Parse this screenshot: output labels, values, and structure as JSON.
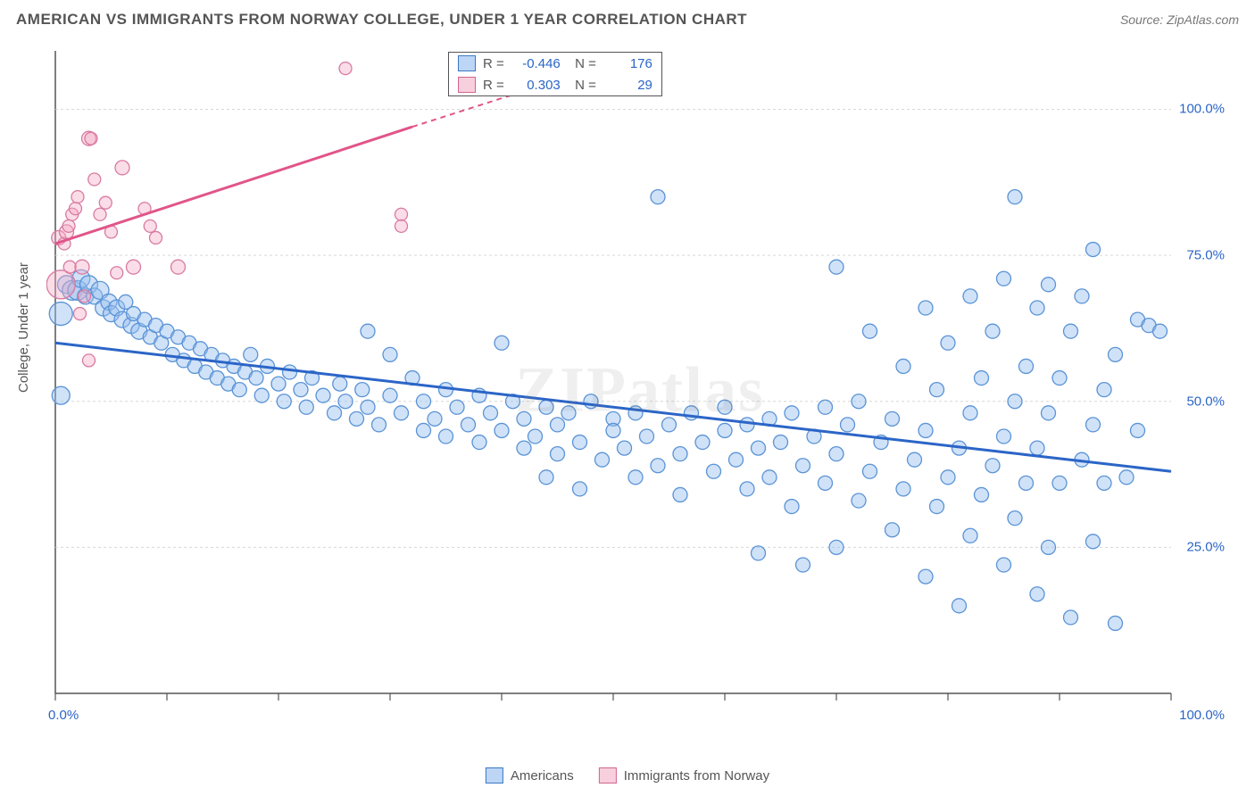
{
  "header": {
    "title": "AMERICAN VS IMMIGRANTS FROM NORWAY COLLEGE, UNDER 1 YEAR CORRELATION CHART",
    "source": "Source: ZipAtlas.com"
  },
  "watermark": "ZIPatlas",
  "chart": {
    "type": "scatter",
    "ylabel": "College, Under 1 year",
    "xlim": [
      0,
      100
    ],
    "ylim": [
      0,
      110
    ],
    "background_color": "#ffffff",
    "grid_color": "#d8d8d8",
    "axis_color": "#555555",
    "yticks": [
      25,
      50,
      75,
      100
    ],
    "ytick_labels": [
      "25.0%",
      "50.0%",
      "75.0%",
      "100.0%"
    ],
    "xtick_positions": [
      0,
      10,
      20,
      30,
      40,
      50,
      60,
      70,
      80,
      90,
      100
    ],
    "xtick_labels": {
      "0": "0.0%",
      "100": "100.0%"
    },
    "stats_legend": [
      {
        "swatch": "blue",
        "r_label": "R =",
        "r": "-0.446",
        "n_label": "N =",
        "n": "176"
      },
      {
        "swatch": "pink",
        "r_label": "R =",
        "r": "0.303",
        "n_label": "N =",
        "n": "29"
      }
    ],
    "series_legend": [
      {
        "swatch": "blue",
        "label": "Americans"
      },
      {
        "swatch": "pink",
        "label": "Immigrants from Norway"
      }
    ],
    "trend_lines": {
      "blue": {
        "x1": 0,
        "y1": 60,
        "x2": 100,
        "y2": 38,
        "color": "#2b65c7",
        "width": 3
      },
      "pink_solid": {
        "x1": 0,
        "y1": 77,
        "x2": 32,
        "y2": 97,
        "color": "#e15589",
        "width": 3
      },
      "pink_dash": {
        "x1": 32,
        "y1": 97,
        "x2": 50,
        "y2": 108,
        "color": "#e15589",
        "width": 2,
        "dash": "6,5"
      }
    },
    "marker_style": {
      "blue": {
        "fill": "rgba(150,190,240,0.45)",
        "stroke": "#5a93d6",
        "stroke_width": 1.3
      },
      "pink": {
        "fill": "rgba(245,170,195,0.40)",
        "stroke": "#d97aa2",
        "stroke_width": 1.3
      }
    },
    "series_pink": [
      {
        "x": 0.5,
        "y": 70,
        "r": 16
      },
      {
        "x": 0.3,
        "y": 78,
        "r": 8
      },
      {
        "x": 0.8,
        "y": 77,
        "r": 7
      },
      {
        "x": 1.0,
        "y": 79,
        "r": 8
      },
      {
        "x": 1.2,
        "y": 80,
        "r": 7
      },
      {
        "x": 1.3,
        "y": 73,
        "r": 7
      },
      {
        "x": 1.5,
        "y": 82,
        "r": 7
      },
      {
        "x": 1.8,
        "y": 83,
        "r": 7
      },
      {
        "x": 2.0,
        "y": 85,
        "r": 7
      },
      {
        "x": 2.2,
        "y": 65,
        "r": 7
      },
      {
        "x": 2.4,
        "y": 73,
        "r": 8
      },
      {
        "x": 2.6,
        "y": 68,
        "r": 7
      },
      {
        "x": 3.0,
        "y": 95,
        "r": 8
      },
      {
        "x": 3.2,
        "y": 95,
        "r": 7
      },
      {
        "x": 3.0,
        "y": 57,
        "r": 7
      },
      {
        "x": 3.5,
        "y": 88,
        "r": 7
      },
      {
        "x": 4.0,
        "y": 82,
        "r": 7
      },
      {
        "x": 4.5,
        "y": 84,
        "r": 7
      },
      {
        "x": 5.0,
        "y": 79,
        "r": 7
      },
      {
        "x": 5.5,
        "y": 72,
        "r": 7
      },
      {
        "x": 6.0,
        "y": 90,
        "r": 8
      },
      {
        "x": 7.0,
        "y": 73,
        "r": 8
      },
      {
        "x": 8.0,
        "y": 83,
        "r": 7
      },
      {
        "x": 8.5,
        "y": 80,
        "r": 7
      },
      {
        "x": 9.0,
        "y": 78,
        "r": 7
      },
      {
        "x": 11,
        "y": 73,
        "r": 8
      },
      {
        "x": 26,
        "y": 107,
        "r": 7
      },
      {
        "x": 31,
        "y": 82,
        "r": 7
      },
      {
        "x": 31,
        "y": 80,
        "r": 7
      }
    ],
    "series_blue": [
      {
        "x": 0.5,
        "y": 65,
        "r": 13
      },
      {
        "x": 0.5,
        "y": 51,
        "r": 10
      },
      {
        "x": 1,
        "y": 70,
        "r": 10
      },
      {
        "x": 1.5,
        "y": 69,
        "r": 11
      },
      {
        "x": 2,
        "y": 69,
        "r": 11
      },
      {
        "x": 2.3,
        "y": 71,
        "r": 10
      },
      {
        "x": 2.7,
        "y": 68,
        "r": 9
      },
      {
        "x": 3,
        "y": 70,
        "r": 10
      },
      {
        "x": 3.5,
        "y": 68,
        "r": 9
      },
      {
        "x": 4,
        "y": 69,
        "r": 10
      },
      {
        "x": 4.3,
        "y": 66,
        "r": 9
      },
      {
        "x": 4.8,
        "y": 67,
        "r": 9
      },
      {
        "x": 5,
        "y": 65,
        "r": 9
      },
      {
        "x": 5.5,
        "y": 66,
        "r": 9
      },
      {
        "x": 6,
        "y": 64,
        "r": 9
      },
      {
        "x": 6.3,
        "y": 67,
        "r": 8
      },
      {
        "x": 6.8,
        "y": 63,
        "r": 9
      },
      {
        "x": 7,
        "y": 65,
        "r": 8
      },
      {
        "x": 7.5,
        "y": 62,
        "r": 9
      },
      {
        "x": 8,
        "y": 64,
        "r": 8
      },
      {
        "x": 8.5,
        "y": 61,
        "r": 8
      },
      {
        "x": 9,
        "y": 63,
        "r": 8
      },
      {
        "x": 9.5,
        "y": 60,
        "r": 8
      },
      {
        "x": 10,
        "y": 62,
        "r": 8
      },
      {
        "x": 10.5,
        "y": 58,
        "r": 8
      },
      {
        "x": 11,
        "y": 61,
        "r": 8
      },
      {
        "x": 11.5,
        "y": 57,
        "r": 8
      },
      {
        "x": 12,
        "y": 60,
        "r": 8
      },
      {
        "x": 12.5,
        "y": 56,
        "r": 8
      },
      {
        "x": 13,
        "y": 59,
        "r": 8
      },
      {
        "x": 13.5,
        "y": 55,
        "r": 8
      },
      {
        "x": 14,
        "y": 58,
        "r": 8
      },
      {
        "x": 14.5,
        "y": 54,
        "r": 8
      },
      {
        "x": 15,
        "y": 57,
        "r": 8
      },
      {
        "x": 15.5,
        "y": 53,
        "r": 8
      },
      {
        "x": 16,
        "y": 56,
        "r": 8
      },
      {
        "x": 16.5,
        "y": 52,
        "r": 8
      },
      {
        "x": 17,
        "y": 55,
        "r": 8
      },
      {
        "x": 17.5,
        "y": 58,
        "r": 8
      },
      {
        "x": 18,
        "y": 54,
        "r": 8
      },
      {
        "x": 18.5,
        "y": 51,
        "r": 8
      },
      {
        "x": 19,
        "y": 56,
        "r": 8
      },
      {
        "x": 20,
        "y": 53,
        "r": 8
      },
      {
        "x": 20.5,
        "y": 50,
        "r": 8
      },
      {
        "x": 21,
        "y": 55,
        "r": 8
      },
      {
        "x": 22,
        "y": 52,
        "r": 8
      },
      {
        "x": 22.5,
        "y": 49,
        "r": 8
      },
      {
        "x": 23,
        "y": 54,
        "r": 8
      },
      {
        "x": 24,
        "y": 51,
        "r": 8
      },
      {
        "x": 25,
        "y": 48,
        "r": 8
      },
      {
        "x": 25.5,
        "y": 53,
        "r": 8
      },
      {
        "x": 26,
        "y": 50,
        "r": 8
      },
      {
        "x": 27,
        "y": 47,
        "r": 8
      },
      {
        "x": 27.5,
        "y": 52,
        "r": 8
      },
      {
        "x": 28,
        "y": 62,
        "r": 8
      },
      {
        "x": 28,
        "y": 49,
        "r": 8
      },
      {
        "x": 29,
        "y": 46,
        "r": 8
      },
      {
        "x": 30,
        "y": 51,
        "r": 8
      },
      {
        "x": 30,
        "y": 58,
        "r": 8
      },
      {
        "x": 31,
        "y": 48,
        "r": 8
      },
      {
        "x": 32,
        "y": 54,
        "r": 8
      },
      {
        "x": 33,
        "y": 45,
        "r": 8
      },
      {
        "x": 33,
        "y": 50,
        "r": 8
      },
      {
        "x": 34,
        "y": 47,
        "r": 8
      },
      {
        "x": 35,
        "y": 52,
        "r": 8
      },
      {
        "x": 35,
        "y": 44,
        "r": 8
      },
      {
        "x": 36,
        "y": 49,
        "r": 8
      },
      {
        "x": 37,
        "y": 46,
        "r": 8
      },
      {
        "x": 38,
        "y": 51,
        "r": 8
      },
      {
        "x": 38,
        "y": 43,
        "r": 8
      },
      {
        "x": 39,
        "y": 48,
        "r": 8
      },
      {
        "x": 40,
        "y": 60,
        "r": 8
      },
      {
        "x": 40,
        "y": 45,
        "r": 8
      },
      {
        "x": 41,
        "y": 50,
        "r": 8
      },
      {
        "x": 42,
        "y": 42,
        "r": 8
      },
      {
        "x": 42,
        "y": 47,
        "r": 8
      },
      {
        "x": 43,
        "y": 44,
        "r": 8
      },
      {
        "x": 44,
        "y": 49,
        "r": 8
      },
      {
        "x": 44,
        "y": 37,
        "r": 8
      },
      {
        "x": 45,
        "y": 46,
        "r": 8
      },
      {
        "x": 45,
        "y": 41,
        "r": 8
      },
      {
        "x": 46,
        "y": 48,
        "r": 8
      },
      {
        "x": 47,
        "y": 43,
        "r": 8
      },
      {
        "x": 47,
        "y": 35,
        "r": 8
      },
      {
        "x": 48,
        "y": 50,
        "r": 8
      },
      {
        "x": 49,
        "y": 40,
        "r": 8
      },
      {
        "x": 50,
        "y": 47,
        "r": 8
      },
      {
        "x": 50,
        "y": 45,
        "r": 8
      },
      {
        "x": 51,
        "y": 42,
        "r": 8
      },
      {
        "x": 52,
        "y": 48,
        "r": 8
      },
      {
        "x": 52,
        "y": 37,
        "r": 8
      },
      {
        "x": 53,
        "y": 44,
        "r": 8
      },
      {
        "x": 54,
        "y": 85,
        "r": 8
      },
      {
        "x": 54,
        "y": 39,
        "r": 8
      },
      {
        "x": 55,
        "y": 46,
        "r": 8
      },
      {
        "x": 56,
        "y": 41,
        "r": 8
      },
      {
        "x": 56,
        "y": 34,
        "r": 8
      },
      {
        "x": 57,
        "y": 48,
        "r": 8
      },
      {
        "x": 58,
        "y": 43,
        "r": 8
      },
      {
        "x": 59,
        "y": 38,
        "r": 8
      },
      {
        "x": 60,
        "y": 45,
        "r": 8
      },
      {
        "x": 60,
        "y": 49,
        "r": 8
      },
      {
        "x": 61,
        "y": 40,
        "r": 8
      },
      {
        "x": 62,
        "y": 46,
        "r": 8
      },
      {
        "x": 62,
        "y": 35,
        "r": 8
      },
      {
        "x": 63,
        "y": 24,
        "r": 8
      },
      {
        "x": 63,
        "y": 42,
        "r": 8
      },
      {
        "x": 64,
        "y": 47,
        "r": 8
      },
      {
        "x": 64,
        "y": 37,
        "r": 8
      },
      {
        "x": 65,
        "y": 43,
        "r": 8
      },
      {
        "x": 66,
        "y": 48,
        "r": 8
      },
      {
        "x": 66,
        "y": 32,
        "r": 8
      },
      {
        "x": 67,
        "y": 39,
        "r": 8
      },
      {
        "x": 67,
        "y": 22,
        "r": 8
      },
      {
        "x": 68,
        "y": 44,
        "r": 8
      },
      {
        "x": 69,
        "y": 49,
        "r": 8
      },
      {
        "x": 69,
        "y": 36,
        "r": 8
      },
      {
        "x": 70,
        "y": 73,
        "r": 8
      },
      {
        "x": 70,
        "y": 41,
        "r": 8
      },
      {
        "x": 70,
        "y": 25,
        "r": 8
      },
      {
        "x": 71,
        "y": 46,
        "r": 8
      },
      {
        "x": 72,
        "y": 33,
        "r": 8
      },
      {
        "x": 72,
        "y": 50,
        "r": 8
      },
      {
        "x": 73,
        "y": 38,
        "r": 8
      },
      {
        "x": 73,
        "y": 62,
        "r": 8
      },
      {
        "x": 74,
        "y": 43,
        "r": 8
      },
      {
        "x": 75,
        "y": 28,
        "r": 8
      },
      {
        "x": 75,
        "y": 47,
        "r": 8
      },
      {
        "x": 76,
        "y": 35,
        "r": 8
      },
      {
        "x": 76,
        "y": 56,
        "r": 8
      },
      {
        "x": 77,
        "y": 40,
        "r": 8
      },
      {
        "x": 78,
        "y": 66,
        "r": 8
      },
      {
        "x": 78,
        "y": 20,
        "r": 8
      },
      {
        "x": 78,
        "y": 45,
        "r": 8
      },
      {
        "x": 79,
        "y": 32,
        "r": 8
      },
      {
        "x": 79,
        "y": 52,
        "r": 8
      },
      {
        "x": 80,
        "y": 37,
        "r": 8
      },
      {
        "x": 80,
        "y": 60,
        "r": 8
      },
      {
        "x": 81,
        "y": 42,
        "r": 8
      },
      {
        "x": 81,
        "y": 15,
        "r": 8
      },
      {
        "x": 82,
        "y": 68,
        "r": 8
      },
      {
        "x": 82,
        "y": 48,
        "r": 8
      },
      {
        "x": 82,
        "y": 27,
        "r": 8
      },
      {
        "x": 83,
        "y": 34,
        "r": 8
      },
      {
        "x": 83,
        "y": 54,
        "r": 8
      },
      {
        "x": 84,
        "y": 39,
        "r": 8
      },
      {
        "x": 84,
        "y": 62,
        "r": 8
      },
      {
        "x": 85,
        "y": 44,
        "r": 8
      },
      {
        "x": 85,
        "y": 71,
        "r": 8
      },
      {
        "x": 85,
        "y": 22,
        "r": 8
      },
      {
        "x": 86,
        "y": 50,
        "r": 8
      },
      {
        "x": 86,
        "y": 85,
        "r": 8
      },
      {
        "x": 86,
        "y": 30,
        "r": 8
      },
      {
        "x": 87,
        "y": 56,
        "r": 8
      },
      {
        "x": 87,
        "y": 36,
        "r": 8
      },
      {
        "x": 88,
        "y": 66,
        "r": 8
      },
      {
        "x": 88,
        "y": 17,
        "r": 8
      },
      {
        "x": 88,
        "y": 42,
        "r": 8
      },
      {
        "x": 89,
        "y": 70,
        "r": 8
      },
      {
        "x": 89,
        "y": 48,
        "r": 8
      },
      {
        "x": 89,
        "y": 25,
        "r": 8
      },
      {
        "x": 90,
        "y": 36,
        "r": 8
      },
      {
        "x": 90,
        "y": 54,
        "r": 8
      },
      {
        "x": 91,
        "y": 62,
        "r": 8
      },
      {
        "x": 91,
        "y": 13,
        "r": 8
      },
      {
        "x": 92,
        "y": 40,
        "r": 8
      },
      {
        "x": 92,
        "y": 68,
        "r": 8
      },
      {
        "x": 93,
        "y": 76,
        "r": 8
      },
      {
        "x": 93,
        "y": 46,
        "r": 8
      },
      {
        "x": 93,
        "y": 26,
        "r": 8
      },
      {
        "x": 94,
        "y": 36,
        "r": 8
      },
      {
        "x": 94,
        "y": 52,
        "r": 8
      },
      {
        "x": 95,
        "y": 12,
        "r": 8
      },
      {
        "x": 95,
        "y": 58,
        "r": 8
      },
      {
        "x": 96,
        "y": 37,
        "r": 8
      },
      {
        "x": 97,
        "y": 64,
        "r": 8
      },
      {
        "x": 97,
        "y": 45,
        "r": 8
      },
      {
        "x": 98,
        "y": 63,
        "r": 8
      },
      {
        "x": 99,
        "y": 62,
        "r": 8
      }
    ]
  }
}
